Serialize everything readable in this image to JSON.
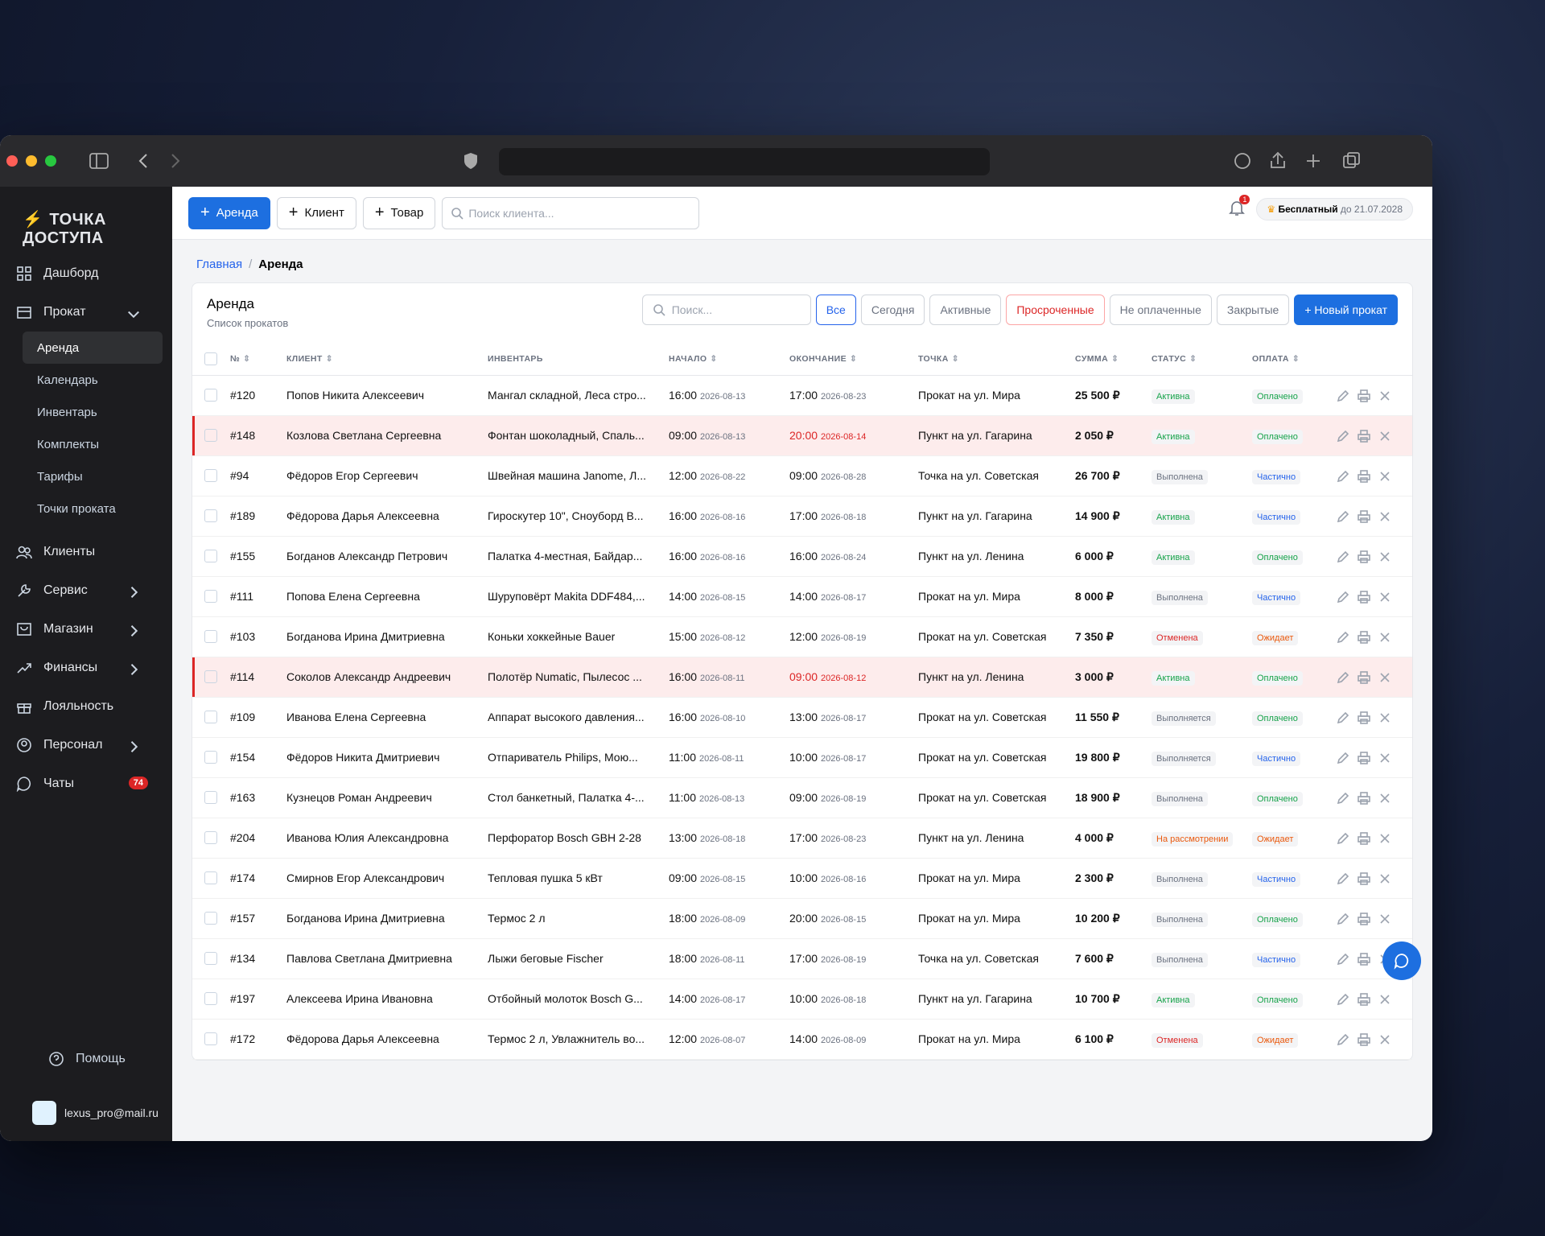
{
  "browser": {
    "notification_count": "1"
  },
  "sidebar": {
    "brand": "ТОЧКА ДОСТУПА",
    "menu": {
      "dashboard": "Дашборд",
      "rental": "Прокат",
      "rental_items": [
        "Аренда",
        "Календарь",
        "Инвентарь",
        "Комплекты",
        "Тарифы",
        "Точки проката"
      ],
      "clients": "Клиенты",
      "service": "Сервис",
      "shop": "Магазин",
      "finance": "Финансы",
      "loyalty": "Лояльность",
      "staff": "Персонал",
      "chats": "Чаты",
      "chats_badge": "74"
    },
    "help": "Помощь",
    "user_email": "lexus_pro@mail.ru"
  },
  "topbar": {
    "buttons": [
      "Аренда",
      "Клиент",
      "Товар"
    ],
    "search_placeholder": "Поиск клиента...",
    "notification_count": "1",
    "plan": "Бесплатный",
    "plan_until": "до 21.07.2028"
  },
  "breadcrumb": {
    "home": "Главная",
    "current": "Аренда"
  },
  "card": {
    "title": "Аренда",
    "subtitle": "Список прокатов",
    "search_placeholder": "Поиск...",
    "filters": [
      {
        "label": "Все",
        "active": true,
        "color": "#2563eb"
      },
      {
        "label": "Сегодня",
        "active": false,
        "color": "#6b7280"
      },
      {
        "label": "Активные",
        "active": false,
        "color": "#6b7280"
      },
      {
        "label": "Просроченные",
        "active": false,
        "color": "#dc2626"
      },
      {
        "label": "Не оплаченные",
        "active": false,
        "color": "#6b7280"
      },
      {
        "label": "Закрытые",
        "active": false,
        "color": "#6b7280"
      }
    ],
    "new_button": "+ Новый прокат"
  },
  "table": {
    "columns": [
      "№",
      "КЛИЕНТ",
      "ИНВЕНТАРЬ",
      "НАЧАЛО",
      "ОКОНЧАНИЕ",
      "ТОЧКА",
      "СУММА",
      "СТАТУС",
      "ОПЛАТА"
    ],
    "rows": [
      {
        "id": "#120",
        "client": "Попов Никита Алексеевич",
        "inventory": "Мангал складной, Леса стро...",
        "start_time": "16:00",
        "start_date": "2026-08-13",
        "end_time": "17:00",
        "end_date": "2026-08-23",
        "overdue": false,
        "point": "Прокат на ул. Мира",
        "sum": "25 500 ₽",
        "status": "Активна",
        "status_color": "#16a34a",
        "payment": "Оплачено",
        "payment_color": "#16a34a"
      },
      {
        "id": "#148",
        "client": "Козлова Светлана Сергеевна",
        "inventory": "Фонтан шоколадный, Спаль...",
        "start_time": "09:00",
        "start_date": "2026-08-13",
        "end_time": "20:00",
        "end_date": "2026-08-14",
        "overdue": true,
        "point": "Пункт на ул. Гагарина",
        "sum": "2 050 ₽",
        "status": "Активна",
        "status_color": "#16a34a",
        "payment": "Оплачено",
        "payment_color": "#16a34a"
      },
      {
        "id": "#94",
        "client": "Фёдоров Егор Сергеевич",
        "inventory": "Швейная машина Janome, Л...",
        "start_time": "12:00",
        "start_date": "2026-08-22",
        "end_time": "09:00",
        "end_date": "2026-08-28",
        "overdue": false,
        "point": "Точка на ул. Советская",
        "sum": "26 700 ₽",
        "status": "Выполнена",
        "status_color": "#6b7280",
        "payment": "Частично",
        "payment_color": "#2563eb"
      },
      {
        "id": "#189",
        "client": "Фёдорова Дарья Алексеевна",
        "inventory": "Гироскутер 10\", Сноуборд B...",
        "start_time": "16:00",
        "start_date": "2026-08-16",
        "end_time": "17:00",
        "end_date": "2026-08-18",
        "overdue": false,
        "point": "Пункт на ул. Гагарина",
        "sum": "14 900 ₽",
        "status": "Активна",
        "status_color": "#16a34a",
        "payment": "Частично",
        "payment_color": "#2563eb"
      },
      {
        "id": "#155",
        "client": "Богданов Александр Петрович",
        "inventory": "Палатка 4-местная, Байдар...",
        "start_time": "16:00",
        "start_date": "2026-08-16",
        "end_time": "16:00",
        "end_date": "2026-08-24",
        "overdue": false,
        "point": "Пункт на ул. Ленина",
        "sum": "6 000 ₽",
        "status": "Активна",
        "status_color": "#16a34a",
        "payment": "Оплачено",
        "payment_color": "#16a34a"
      },
      {
        "id": "#111",
        "client": "Попова Елена Сергеевна",
        "inventory": "Шуруповёрт Makita DDF484,...",
        "start_time": "14:00",
        "start_date": "2026-08-15",
        "end_time": "14:00",
        "end_date": "2026-08-17",
        "overdue": false,
        "point": "Прокат на ул. Мира",
        "sum": "8 000 ₽",
        "status": "Выполнена",
        "status_color": "#6b7280",
        "payment": "Частично",
        "payment_color": "#2563eb"
      },
      {
        "id": "#103",
        "client": "Богданова Ирина Дмитриевна",
        "inventory": "Коньки хоккейные Bauer",
        "start_time": "15:00",
        "start_date": "2026-08-12",
        "end_time": "12:00",
        "end_date": "2026-08-19",
        "overdue": false,
        "point": "Прокат на ул. Советская",
        "sum": "7 350 ₽",
        "status": "Отменена",
        "status_color": "#dc2626",
        "payment": "Ожидает",
        "payment_color": "#ea580c"
      },
      {
        "id": "#114",
        "client": "Соколов Александр Андреевич",
        "inventory": "Полотёр Numatic, Пылесос ...",
        "start_time": "16:00",
        "start_date": "2026-08-11",
        "end_time": "09:00",
        "end_date": "2026-08-12",
        "overdue": true,
        "point": "Пункт на ул. Ленина",
        "sum": "3 000 ₽",
        "status": "Активна",
        "status_color": "#16a34a",
        "payment": "Оплачено",
        "payment_color": "#16a34a"
      },
      {
        "id": "#109",
        "client": "Иванова Елена Сергеевна",
        "inventory": "Аппарат высокого давления...",
        "start_time": "16:00",
        "start_date": "2026-08-10",
        "end_time": "13:00",
        "end_date": "2026-08-17",
        "overdue": false,
        "point": "Прокат на ул. Советская",
        "sum": "11 550 ₽",
        "status": "Выполняется",
        "status_color": "#6b7280",
        "payment": "Оплачено",
        "payment_color": "#16a34a"
      },
      {
        "id": "#154",
        "client": "Фёдоров Никита Дмитриевич",
        "inventory": "Отпариватель Philips, Мою...",
        "start_time": "11:00",
        "start_date": "2026-08-11",
        "end_time": "10:00",
        "end_date": "2026-08-17",
        "overdue": false,
        "point": "Прокат на ул. Советская",
        "sum": "19 800 ₽",
        "status": "Выполняется",
        "status_color": "#6b7280",
        "payment": "Частично",
        "payment_color": "#2563eb"
      },
      {
        "id": "#163",
        "client": "Кузнецов Роман Андреевич",
        "inventory": "Стол банкетный, Палатка 4-...",
        "start_time": "11:00",
        "start_date": "2026-08-13",
        "end_time": "09:00",
        "end_date": "2026-08-19",
        "overdue": false,
        "point": "Прокат на ул. Советская",
        "sum": "18 900 ₽",
        "status": "Выполнена",
        "status_color": "#6b7280",
        "payment": "Оплачено",
        "payment_color": "#16a34a"
      },
      {
        "id": "#204",
        "client": "Иванова Юлия Александровна",
        "inventory": "Перфоратор Bosch GBH 2-28",
        "start_time": "13:00",
        "start_date": "2026-08-18",
        "end_time": "17:00",
        "end_date": "2026-08-23",
        "overdue": false,
        "point": "Пункт на ул. Ленина",
        "sum": "4 000 ₽",
        "status": "На рассмотрении",
        "status_color": "#ea580c",
        "payment": "Ожидает",
        "payment_color": "#ea580c"
      },
      {
        "id": "#174",
        "client": "Смирнов Егор Александрович",
        "inventory": "Тепловая пушка 5 кВт",
        "start_time": "09:00",
        "start_date": "2026-08-15",
        "end_time": "10:00",
        "end_date": "2026-08-16",
        "overdue": false,
        "point": "Прокат на ул. Мира",
        "sum": "2 300 ₽",
        "status": "Выполнена",
        "status_color": "#6b7280",
        "payment": "Частично",
        "payment_color": "#2563eb"
      },
      {
        "id": "#157",
        "client": "Богданова Ирина Дмитриевна",
        "inventory": "Термос 2 л",
        "start_time": "18:00",
        "start_date": "2026-08-09",
        "end_time": "20:00",
        "end_date": "2026-08-15",
        "overdue": false,
        "point": "Прокат на ул. Мира",
        "sum": "10 200 ₽",
        "status": "Выполнена",
        "status_color": "#6b7280",
        "payment": "Оплачено",
        "payment_color": "#16a34a"
      },
      {
        "id": "#134",
        "client": "Павлова Светлана Дмитриевна",
        "inventory": "Лыжи беговые Fischer",
        "start_time": "18:00",
        "start_date": "2026-08-11",
        "end_time": "17:00",
        "end_date": "2026-08-19",
        "overdue": false,
        "point": "Точка на ул. Советская",
        "sum": "7 600 ₽",
        "status": "Выполнена",
        "status_color": "#6b7280",
        "payment": "Частично",
        "payment_color": "#2563eb"
      },
      {
        "id": "#197",
        "client": "Алексеева Ирина Ивановна",
        "inventory": "Отбойный молоток Bosch G...",
        "start_time": "14:00",
        "start_date": "2026-08-17",
        "end_time": "10:00",
        "end_date": "2026-08-18",
        "overdue": false,
        "point": "Пункт на ул. Гагарина",
        "sum": "10 700 ₽",
        "status": "Активна",
        "status_color": "#16a34a",
        "payment": "Оплачено",
        "payment_color": "#16a34a"
      },
      {
        "id": "#172",
        "client": "Фёдорова Дарья Алексеевна",
        "inventory": "Термос 2 л, Увлажнитель во...",
        "start_time": "12:00",
        "start_date": "2026-08-07",
        "end_time": "14:00",
        "end_date": "2026-08-09",
        "overdue": false,
        "point": "Прокат на ул. Мира",
        "sum": "6 100 ₽",
        "status": "Отменена",
        "status_color": "#dc2626",
        "payment": "Ожидает",
        "payment_color": "#ea580c"
      }
    ]
  }
}
